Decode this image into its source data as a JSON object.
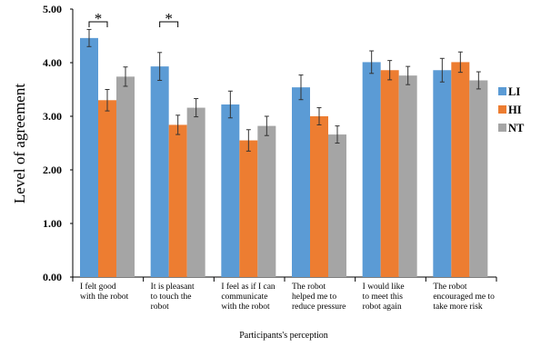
{
  "chart_data": {
    "type": "bar",
    "categories": [
      [
        "I felt good",
        "with the robot"
      ],
      [
        "It is pleasant",
        "to touch the",
        "robot"
      ],
      [
        "I feel as if  I can",
        "communicate",
        "with the robot"
      ],
      [
        "The robot",
        "helped me to",
        "reduce pressure"
      ],
      [
        "I would like",
        "to meet this",
        "robot again"
      ],
      [
        "The robot",
        "encouraged me to",
        "take more risk"
      ]
    ],
    "series": [
      {
        "name": "LI",
        "color": "#5B9BD5",
        "values": [
          4.46,
          3.93,
          3.22,
          3.54,
          4.01,
          3.86
        ],
        "errors": [
          0.16,
          0.26,
          0.25,
          0.23,
          0.21,
          0.22
        ]
      },
      {
        "name": "HI",
        "color": "#ED7D31",
        "values": [
          3.3,
          2.84,
          2.55,
          3.0,
          3.86,
          4.01
        ],
        "errors": [
          0.2,
          0.18,
          0.2,
          0.16,
          0.18,
          0.19
        ]
      },
      {
        "name": "NT",
        "color": "#A5A5A5",
        "values": [
          3.74,
          3.16,
          2.82,
          2.66,
          3.76,
          3.67
        ],
        "errors": [
          0.18,
          0.17,
          0.18,
          0.16,
          0.17,
          0.16
        ]
      }
    ],
    "ylim": [
      0,
      5
    ],
    "yticks": [
      "0.00",
      "1.00",
      "2.00",
      "3.00",
      "4.00",
      "5.00"
    ],
    "ylabel": "Level of agreement",
    "xlabel": "Participants's perception",
    "legend_position": "right",
    "significance": [
      {
        "category_index": 0,
        "label": "*"
      },
      {
        "category_index": 1,
        "label": "*"
      }
    ]
  }
}
